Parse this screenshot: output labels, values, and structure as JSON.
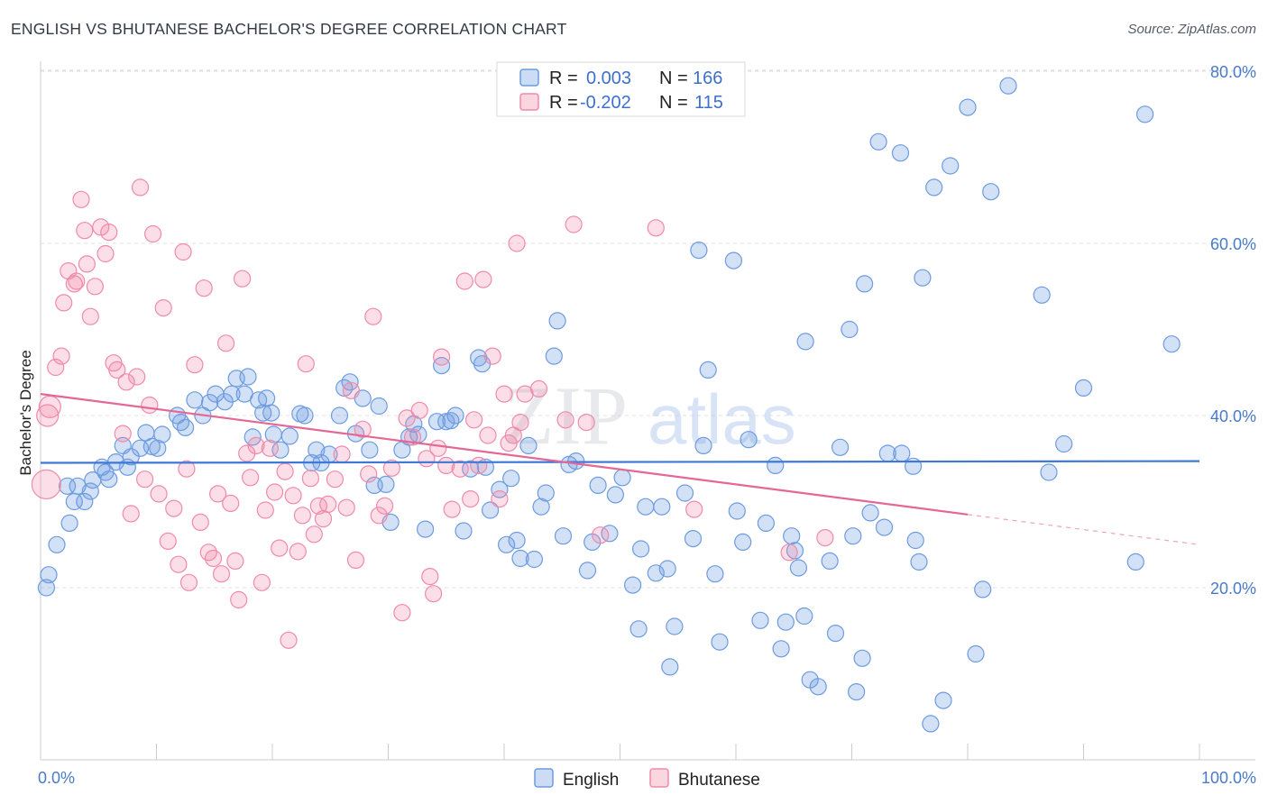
{
  "title": "ENGLISH VS BHUTANESE BACHELOR'S DEGREE CORRELATION CHART",
  "source": "Source: ZipAtlas.com",
  "watermark": {
    "zip": "ZIP",
    "atlas": "atlas"
  },
  "legend_top": [
    {
      "r_label": "R =",
      "r_value": "0.003",
      "n_label": "N =",
      "n_value": "166",
      "color": "#6c9be0"
    },
    {
      "r_label": "R =",
      "r_value": "-0.202",
      "n_label": "N =",
      "n_value": "115",
      "color": "#f08aaa"
    }
  ],
  "chart_data": {
    "type": "scatter",
    "title": "ENGLISH VS BHUTANESE BACHELOR'S DEGREE CORRELATION CHART",
    "xlabel": "",
    "ylabel": "Bachelor's Degree",
    "xlim": [
      0,
      100
    ],
    "ylim": [
      0,
      84
    ],
    "x_tick_labels": [
      "0.0%",
      "100.0%"
    ],
    "y_ticks": [
      20,
      40,
      60,
      80
    ],
    "y_tick_labels": [
      "20.0%",
      "40.0%",
      "60.0%",
      "80.0%"
    ],
    "grid": true,
    "series": [
      {
        "name": "English",
        "color": "#6c9be0",
        "fill": "rgba(108,155,224,0.30)",
        "R": 0.003,
        "N": 166,
        "trend": {
          "x": [
            0,
            100
          ],
          "y": [
            34.5,
            34.7
          ],
          "solid_until": 100
        },
        "points": [
          [
            0.5,
            20
          ],
          [
            0.7,
            21.5
          ],
          [
            1.4,
            25
          ],
          [
            2.3,
            31.8
          ],
          [
            2.5,
            27.5
          ],
          [
            2.9,
            30
          ],
          [
            3.2,
            31.8
          ],
          [
            3.8,
            30
          ],
          [
            4.3,
            31.2
          ],
          [
            4.5,
            32.5
          ],
          [
            5.3,
            34
          ],
          [
            5.6,
            33.4
          ],
          [
            5.9,
            32.6
          ],
          [
            6.5,
            34.6
          ],
          [
            7.1,
            36.5
          ],
          [
            7.5,
            34
          ],
          [
            7.8,
            35.2
          ],
          [
            8.6,
            36.2
          ],
          [
            9.1,
            38
          ],
          [
            9.6,
            36.4
          ],
          [
            10.1,
            36.2
          ],
          [
            10.5,
            37.8
          ],
          [
            11.8,
            40
          ],
          [
            12.1,
            39.2
          ],
          [
            12.5,
            38.6
          ],
          [
            13.3,
            41.8
          ],
          [
            14,
            40
          ],
          [
            14.6,
            41.5
          ],
          [
            15.1,
            42.5
          ],
          [
            15.9,
            41.6
          ],
          [
            16.5,
            42.5
          ],
          [
            16.9,
            44.3
          ],
          [
            17.6,
            42.5
          ],
          [
            17.9,
            44.5
          ],
          [
            18.3,
            37.5
          ],
          [
            18.8,
            41.8
          ],
          [
            19.2,
            40.3
          ],
          [
            19.5,
            42
          ],
          [
            19.9,
            40.3
          ],
          [
            20.1,
            37.8
          ],
          [
            20.7,
            36
          ],
          [
            21.5,
            37.6
          ],
          [
            22.4,
            40.2
          ],
          [
            22.8,
            40
          ],
          [
            23.4,
            34.5
          ],
          [
            23.8,
            36
          ],
          [
            24.2,
            34.5
          ],
          [
            24.9,
            35.5
          ],
          [
            25.8,
            40
          ],
          [
            26.2,
            43.2
          ],
          [
            26.7,
            43.9
          ],
          [
            27.2,
            37.9
          ],
          [
            27.8,
            42
          ],
          [
            28.4,
            36
          ],
          [
            28.8,
            31.9
          ],
          [
            29.2,
            41.1
          ],
          [
            29.8,
            32
          ],
          [
            30.2,
            27.6
          ],
          [
            31.2,
            36
          ],
          [
            31.8,
            37.5
          ],
          [
            32.2,
            39
          ],
          [
            32.6,
            37.8
          ],
          [
            33.2,
            26.8
          ],
          [
            34.2,
            39.3
          ],
          [
            34.6,
            45.8
          ],
          [
            35,
            39.3
          ],
          [
            35.4,
            39.4
          ],
          [
            35.8,
            40
          ],
          [
            36.5,
            26.6
          ],
          [
            37.1,
            33.8
          ],
          [
            37.8,
            46.7
          ],
          [
            38.1,
            46
          ],
          [
            38.4,
            34
          ],
          [
            38.8,
            29
          ],
          [
            39.6,
            31.4
          ],
          [
            40.2,
            25
          ],
          [
            40.6,
            32.7
          ],
          [
            41.1,
            25.5
          ],
          [
            41.4,
            23.4
          ],
          [
            42.1,
            36.5
          ],
          [
            42.6,
            23.3
          ],
          [
            43.2,
            29.4
          ],
          [
            43.6,
            31
          ],
          [
            44.3,
            46.9
          ],
          [
            44.6,
            51
          ],
          [
            45.1,
            26
          ],
          [
            45.6,
            34.3
          ],
          [
            46.2,
            34.7
          ],
          [
            47.2,
            22
          ],
          [
            47.6,
            25.3
          ],
          [
            48.1,
            31.9
          ],
          [
            49.1,
            26.3
          ],
          [
            49.6,
            30.8
          ],
          [
            50.2,
            32.8
          ],
          [
            51.1,
            20.3
          ],
          [
            51.6,
            15.2
          ],
          [
            51.8,
            24.5
          ],
          [
            52.2,
            29.4
          ],
          [
            53.1,
            21.7
          ],
          [
            53.6,
            29.4
          ],
          [
            54.1,
            22.2
          ],
          [
            54.3,
            10.8
          ],
          [
            54.7,
            15.5
          ],
          [
            55.6,
            31
          ],
          [
            56.3,
            25.7
          ],
          [
            56.8,
            59.2
          ],
          [
            57.2,
            36.5
          ],
          [
            57.6,
            45.3
          ],
          [
            58.2,
            21.6
          ],
          [
            58.6,
            13.7
          ],
          [
            59.8,
            58
          ],
          [
            60.1,
            28.9
          ],
          [
            60.6,
            25.3
          ],
          [
            61.1,
            37.2
          ],
          [
            62.1,
            16.2
          ],
          [
            62.6,
            27.5
          ],
          [
            63.4,
            34.2
          ],
          [
            63.9,
            12.9
          ],
          [
            64.3,
            16
          ],
          [
            64.8,
            26
          ],
          [
            65.1,
            24.3
          ],
          [
            65.4,
            22.3
          ],
          [
            65.9,
            16.7
          ],
          [
            66,
            48.6
          ],
          [
            66.4,
            9.3
          ],
          [
            67.1,
            8.5
          ],
          [
            68.1,
            23.1
          ],
          [
            68.6,
            14.7
          ],
          [
            69,
            36.3
          ],
          [
            69.8,
            50
          ],
          [
            70.1,
            26
          ],
          [
            70.4,
            7.9
          ],
          [
            70.9,
            11.8
          ],
          [
            71.1,
            55.3
          ],
          [
            71.6,
            28.7
          ],
          [
            72.3,
            71.8
          ],
          [
            72.8,
            27
          ],
          [
            73.1,
            35.6
          ],
          [
            74.2,
            70.5
          ],
          [
            74.3,
            35.6
          ],
          [
            75.3,
            34.1
          ],
          [
            75.5,
            25.5
          ],
          [
            75.8,
            23
          ],
          [
            76.1,
            56
          ],
          [
            76.8,
            4.2
          ],
          [
            77.1,
            66.5
          ],
          [
            77.9,
            6.9
          ],
          [
            78.5,
            69
          ],
          [
            80,
            75.8
          ],
          [
            80.7,
            12.3
          ],
          [
            81.3,
            19.8
          ],
          [
            82,
            66
          ],
          [
            83.5,
            78.3
          ],
          [
            86.4,
            54
          ],
          [
            87,
            33.4
          ],
          [
            88.3,
            36.7
          ],
          [
            90,
            43.2
          ],
          [
            94.5,
            23
          ],
          [
            95.3,
            75
          ],
          [
            97.6,
            48.3
          ]
        ]
      },
      {
        "name": "Bhutanese",
        "color": "#f08aaa",
        "fill": "rgba(240,138,170,0.28)",
        "R": -0.202,
        "N": 115,
        "trend": {
          "x": [
            0,
            100
          ],
          "y": [
            42.5,
            25
          ],
          "solid_until": 80
        },
        "points": [
          [
            0.5,
            32
          ],
          [
            0.6,
            40
          ],
          [
            0.8,
            41
          ],
          [
            1.3,
            45.6
          ],
          [
            1.8,
            46.9
          ],
          [
            2,
            53.1
          ],
          [
            2.4,
            56.8
          ],
          [
            2.9,
            55.3
          ],
          [
            3.1,
            55.6
          ],
          [
            3.5,
            65.1
          ],
          [
            3.8,
            61.5
          ],
          [
            4,
            57.6
          ],
          [
            4.3,
            51.5
          ],
          [
            4.7,
            55
          ],
          [
            5.2,
            61.9
          ],
          [
            5.6,
            58.8
          ],
          [
            5.9,
            61.3
          ],
          [
            6.3,
            46.1
          ],
          [
            6.6,
            45.3
          ],
          [
            7.1,
            37.9
          ],
          [
            7.4,
            43.9
          ],
          [
            7.8,
            28.6
          ],
          [
            8.3,
            44.5
          ],
          [
            8.6,
            66.5
          ],
          [
            9,
            32.6
          ],
          [
            9.4,
            41.2
          ],
          [
            9.7,
            61.1
          ],
          [
            10.2,
            30.9
          ],
          [
            10.6,
            52.5
          ],
          [
            11,
            25.4
          ],
          [
            11.5,
            29.2
          ],
          [
            11.9,
            22.7
          ],
          [
            12.3,
            59
          ],
          [
            12.6,
            33.8
          ],
          [
            12.8,
            20.6
          ],
          [
            13.3,
            45.9
          ],
          [
            13.8,
            27.6
          ],
          [
            14.1,
            54.8
          ],
          [
            14.5,
            24.1
          ],
          [
            14.9,
            23.4
          ],
          [
            15.3,
            30.9
          ],
          [
            15.6,
            21.6
          ],
          [
            16,
            48.4
          ],
          [
            16.4,
            29.8
          ],
          [
            16.8,
            23.1
          ],
          [
            17.1,
            18.6
          ],
          [
            17.4,
            55.9
          ],
          [
            17.8,
            35.6
          ],
          [
            18.1,
            32.8
          ],
          [
            18.6,
            36.5
          ],
          [
            19.1,
            20.6
          ],
          [
            19.4,
            29
          ],
          [
            19.8,
            36.2
          ],
          [
            20.2,
            31.1
          ],
          [
            20.6,
            24.6
          ],
          [
            21.1,
            33.5
          ],
          [
            21.4,
            13.9
          ],
          [
            21.8,
            30.7
          ],
          [
            22.2,
            24.2
          ],
          [
            22.6,
            28.4
          ],
          [
            22.9,
            46
          ],
          [
            23.3,
            32.7
          ],
          [
            23.6,
            26.2
          ],
          [
            24,
            29.5
          ],
          [
            24.4,
            28
          ],
          [
            24.8,
            29.7
          ],
          [
            25.4,
            32.6
          ],
          [
            26,
            35.5
          ],
          [
            26.4,
            29.3
          ],
          [
            26.8,
            42.9
          ],
          [
            27.2,
            23.2
          ],
          [
            27.8,
            38.4
          ],
          [
            28.3,
            33.2
          ],
          [
            28.7,
            51.5
          ],
          [
            29.2,
            28.4
          ],
          [
            29.7,
            29.5
          ],
          [
            30.3,
            33.9
          ],
          [
            31.2,
            17.1
          ],
          [
            31.6,
            39.7
          ],
          [
            32.1,
            37.5
          ],
          [
            32.7,
            40.6
          ],
          [
            33.3,
            35
          ],
          [
            33.6,
            21.3
          ],
          [
            33.9,
            19.3
          ],
          [
            34.3,
            36.2
          ],
          [
            34.6,
            46.8
          ],
          [
            35,
            34.2
          ],
          [
            35.5,
            29.1
          ],
          [
            36.2,
            33.8
          ],
          [
            36.6,
            55.6
          ],
          [
            37.1,
            30.3
          ],
          [
            37.4,
            39.5
          ],
          [
            37.8,
            34.2
          ],
          [
            38.2,
            55.8
          ],
          [
            38.6,
            37.7
          ],
          [
            39,
            46.9
          ],
          [
            39.6,
            30.3
          ],
          [
            40,
            42.5
          ],
          [
            40.4,
            36.8
          ],
          [
            40.8,
            37.7
          ],
          [
            41.1,
            60
          ],
          [
            41.4,
            39.2
          ],
          [
            41.8,
            42.5
          ],
          [
            43,
            43.1
          ],
          [
            45.3,
            39.5
          ],
          [
            46,
            62.2
          ],
          [
            47.1,
            39.2
          ],
          [
            48.3,
            26.1
          ],
          [
            53.1,
            61.8
          ],
          [
            56.4,
            29.1
          ],
          [
            64.6,
            24.1
          ],
          [
            67.7,
            25.8
          ]
        ]
      }
    ]
  }
}
